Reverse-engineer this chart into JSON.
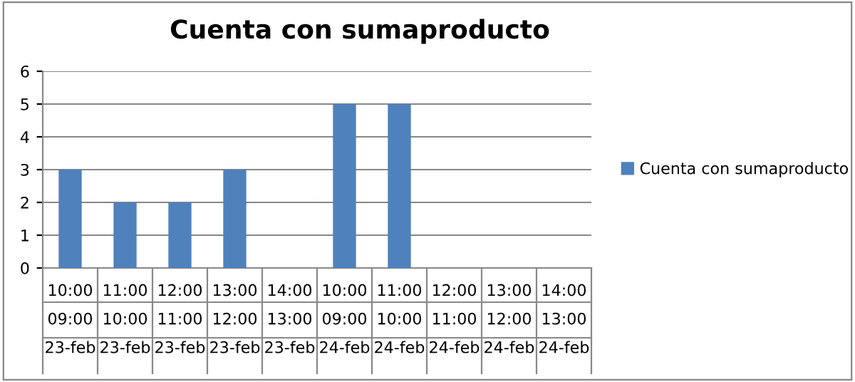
{
  "chart_data": {
    "type": "bar",
    "title": "Cuenta con sumaproducto",
    "categories": [
      "10:00\n09:00\n23-feb",
      "11:00\n10:00\n23-feb",
      "12:00\n11:00\n23-feb",
      "13:00\n12:00\n23-feb",
      "14:00\n13:00\n23-feb",
      "10:00\n09:00\n24-feb",
      "11:00\n10:00\n24-feb",
      "12:00\n11:00\n24-feb",
      "13:00\n12:00\n24-feb",
      "14:00\n13:00\n24-feb"
    ],
    "series": [
      {
        "name": "Cuenta con sumaproducto",
        "color": "#4f81bd",
        "values": [
          3,
          2,
          2,
          3,
          0,
          5,
          5,
          0,
          0,
          0
        ]
      }
    ],
    "ylim": [
      0,
      6
    ],
    "yticks": [
      0,
      1,
      2,
      3,
      4,
      5,
      6
    ],
    "grid": "y",
    "legend": "right"
  }
}
